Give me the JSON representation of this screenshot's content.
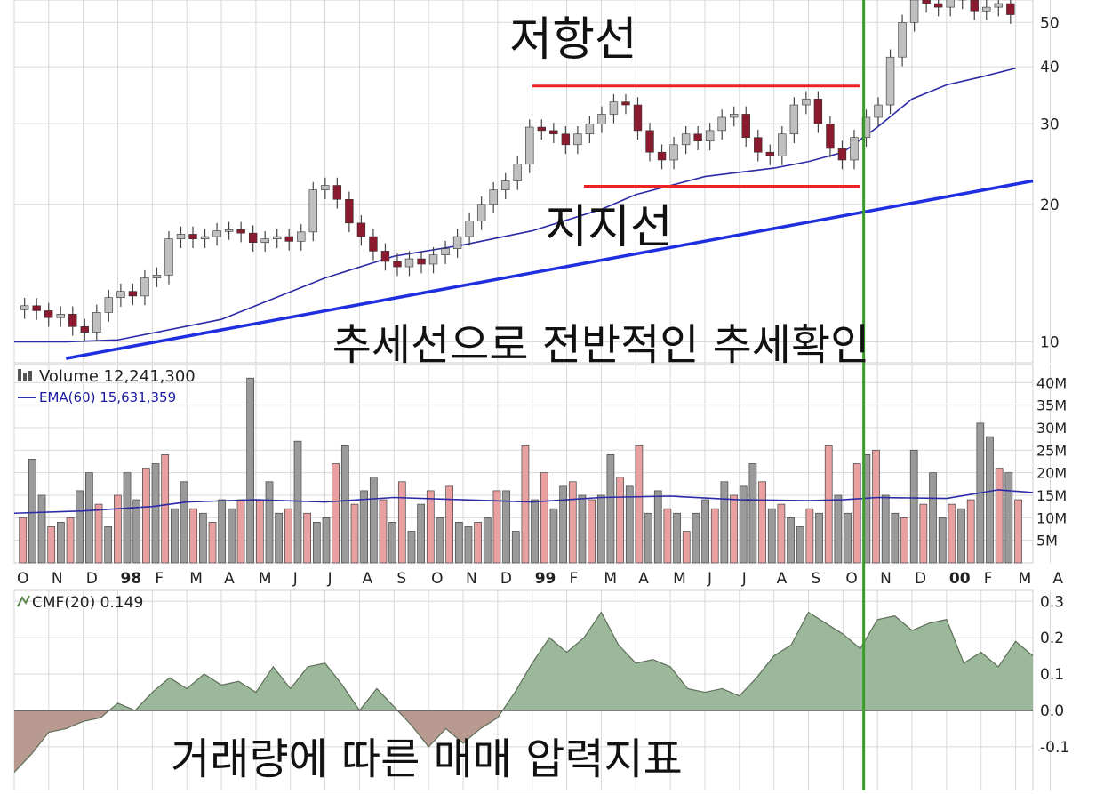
{
  "colors": {
    "up_candle": "#c0c0c0",
    "down_candle": "#8b1a2e",
    "wick": "#444444",
    "resistance_support": "#ee2222",
    "trendline": "#1f2fe0",
    "ema_line": "#2b2ba8",
    "volume_up": "#9a9a9a",
    "volume_down": "#e8a0a0",
    "cmf_positive": "#9cb89a",
    "cmf_negative": "#b99a90",
    "vertical_marker": "#3a9a2a",
    "grid": "#d8d8d8"
  },
  "annotations": {
    "resistance": "저항선",
    "support": "지지선",
    "trend": "추세선으로 전반적인 추세확인",
    "cmf_note": "거래량에 따른 매매 압력지표"
  },
  "chart_data": [
    {
      "type": "candlestick",
      "panel": "price",
      "scale": "log",
      "ylim": [
        9,
        56
      ],
      "y_ticks": [
        10,
        20,
        30,
        40,
        50
      ],
      "y_tick_labels": [
        "10",
        "20",
        "30",
        "40",
        "50"
      ],
      "x_range": [
        0,
        29.5
      ],
      "closes": [
        12.0,
        11.7,
        11.3,
        11.5,
        10.8,
        10.5,
        11.6,
        12.5,
        12.9,
        12.6,
        13.8,
        14.0,
        16.8,
        17.2,
        16.8,
        17.0,
        17.5,
        17.6,
        17.3,
        16.5,
        16.8,
        17.0,
        16.6,
        17.4,
        21.5,
        22.0,
        20.5,
        18.2,
        17.0,
        15.8,
        15.0,
        14.6,
        15.2,
        14.8,
        15.5,
        16.0,
        17.0,
        18.4,
        20.0,
        21.5,
        22.5,
        24.5,
        29.5,
        29.0,
        28.5,
        27.0,
        28.5,
        30.0,
        31.5,
        33.5,
        33.0,
        29.0,
        26.0,
        25.0,
        27.0,
        28.5,
        27.5,
        29.0,
        31.0,
        31.5,
        28.0,
        26.0,
        25.5,
        28.5,
        33.0,
        34.0,
        30.0,
        26.5,
        25.0,
        28.0,
        31.0,
        33.0,
        42.0,
        50.0,
        56.0,
        55.0,
        54.0,
        57.0,
        56.0,
        53.0,
        54.0,
        55.0,
        52.0
      ],
      "ema_line": [
        {
          "x": 0,
          "y": 10.0
        },
        {
          "x": 1.5,
          "y": 10.0
        },
        {
          "x": 3,
          "y": 10.1
        },
        {
          "x": 6,
          "y": 11.2
        },
        {
          "x": 9,
          "y": 13.8
        },
        {
          "x": 11,
          "y": 15.4
        },
        {
          "x": 13,
          "y": 16.3
        },
        {
          "x": 15,
          "y": 17.5
        },
        {
          "x": 17,
          "y": 19.5
        },
        {
          "x": 18,
          "y": 21.0
        },
        {
          "x": 20,
          "y": 23.0
        },
        {
          "x": 22,
          "y": 24.0
        },
        {
          "x": 23,
          "y": 24.8
        },
        {
          "x": 24,
          "y": 26.0
        },
        {
          "x": 25,
          "y": 29.5
        },
        {
          "x": 26,
          "y": 34.0
        },
        {
          "x": 27,
          "y": 36.5
        },
        {
          "x": 28,
          "y": 38.0
        },
        {
          "x": 29,
          "y": 39.7
        }
      ],
      "trendline": [
        {
          "x": 1.5,
          "y": 9.2
        },
        {
          "x": 29.5,
          "y": 22.5
        }
      ],
      "resistance_line": {
        "y": 36.3,
        "x_start": 15,
        "x_end": 24.5
      },
      "support_line": {
        "y": 21.9,
        "x_start": 16.5,
        "x_end": 24.5
      },
      "vertical_marker_x": 24.6
    },
    {
      "type": "bar",
      "panel": "volume",
      "legend": [
        "Volume 12,241,300",
        "EMA(60) 15,631,359"
      ],
      "ylim": [
        0,
        44
      ],
      "y_ticks": [
        5,
        10,
        15,
        20,
        25,
        30,
        35,
        40
      ],
      "y_tick_labels": [
        "5M",
        "10M",
        "15M",
        "20M",
        "25M",
        "30M",
        "35M",
        "40M"
      ],
      "values": [
        10,
        23,
        15,
        8,
        9,
        10,
        16,
        20,
        13,
        8,
        15,
        20,
        14,
        21,
        22,
        24,
        12,
        18,
        12,
        11,
        9,
        14,
        12,
        14,
        41,
        14,
        18,
        11,
        12,
        27,
        11,
        9,
        10,
        22,
        26,
        13,
        16,
        19,
        14,
        9,
        18,
        7,
        13,
        16,
        10,
        17,
        9,
        8,
        9,
        10,
        16,
        16,
        7,
        26,
        14,
        20,
        12,
        17,
        18,
        15,
        14,
        15,
        24,
        19,
        17,
        26,
        11,
        16,
        12,
        11,
        7,
        11,
        14,
        12,
        18,
        15,
        17,
        22,
        18,
        12,
        13,
        10,
        8,
        12,
        11,
        26,
        15,
        11,
        22,
        24,
        25,
        15,
        11,
        10,
        25,
        13,
        20,
        10,
        13,
        12,
        14,
        31,
        28,
        21,
        20,
        14
      ],
      "ema": [
        {
          "x": 0,
          "y": 11
        },
        {
          "x": 2,
          "y": 11.5
        },
        {
          "x": 4,
          "y": 12.5
        },
        {
          "x": 5,
          "y": 13.5
        },
        {
          "x": 7,
          "y": 14
        },
        {
          "x": 9,
          "y": 13.5
        },
        {
          "x": 11,
          "y": 14.5
        },
        {
          "x": 13,
          "y": 14.0
        },
        {
          "x": 15,
          "y": 13.5
        },
        {
          "x": 17,
          "y": 14.5
        },
        {
          "x": 19,
          "y": 14.8
        },
        {
          "x": 21,
          "y": 14
        },
        {
          "x": 23,
          "y": 13.8
        },
        {
          "x": 24,
          "y": 14.0
        },
        {
          "x": 25,
          "y": 14.5
        },
        {
          "x": 27,
          "y": 14.3
        },
        {
          "x": 28.5,
          "y": 16.2
        },
        {
          "x": 29.5,
          "y": 15.6
        }
      ],
      "x_labels": [
        "O",
        "N",
        "D",
        "98",
        "F",
        "M",
        "A",
        "M",
        "J",
        "J",
        "A",
        "S",
        "O",
        "N",
        "D",
        "99",
        "F",
        "M",
        "A",
        "M",
        "J",
        "J",
        "A",
        "S",
        "O",
        "N",
        "D",
        "00",
        "F",
        "M",
        "A"
      ],
      "x_label_positions": [
        0,
        1,
        2,
        3,
        4,
        5,
        6,
        7,
        8,
        9,
        10,
        11,
        12,
        13,
        14,
        15,
        16,
        17,
        18,
        19,
        20,
        21,
        22,
        23,
        24,
        25,
        26,
        27,
        28,
        29,
        30
      ],
      "bold_labels": [
        "98",
        "99",
        "00"
      ]
    },
    {
      "type": "area",
      "panel": "cmf",
      "legend": "CMF(20) 0.149",
      "ylim": [
        -0.22,
        0.33
      ],
      "y_ticks": [
        -0.1,
        0.0,
        0.1,
        0.2,
        0.3
      ],
      "y_tick_labels": [
        "-0.1",
        "0.0",
        "0.1",
        "0.2",
        "0.3"
      ],
      "points": [
        {
          "x": 0,
          "y": -0.17
        },
        {
          "x": 0.5,
          "y": -0.12
        },
        {
          "x": 1,
          "y": -0.06
        },
        {
          "x": 1.5,
          "y": -0.05
        },
        {
          "x": 2,
          "y": -0.03
        },
        {
          "x": 2.5,
          "y": -0.02
        },
        {
          "x": 3,
          "y": 0.02
        },
        {
          "x": 3.5,
          "y": 0.0
        },
        {
          "x": 4,
          "y": 0.05
        },
        {
          "x": 4.5,
          "y": 0.09
        },
        {
          "x": 5,
          "y": 0.06
        },
        {
          "x": 5.5,
          "y": 0.1
        },
        {
          "x": 6,
          "y": 0.07
        },
        {
          "x": 6.5,
          "y": 0.08
        },
        {
          "x": 7,
          "y": 0.05
        },
        {
          "x": 7.5,
          "y": 0.12
        },
        {
          "x": 8,
          "y": 0.06
        },
        {
          "x": 8.5,
          "y": 0.12
        },
        {
          "x": 9,
          "y": 0.13
        },
        {
          "x": 9.5,
          "y": 0.07
        },
        {
          "x": 10,
          "y": 0.0
        },
        {
          "x": 10.5,
          "y": 0.06
        },
        {
          "x": 11,
          "y": 0.01
        },
        {
          "x": 11.5,
          "y": -0.04
        },
        {
          "x": 12,
          "y": -0.1
        },
        {
          "x": 12.5,
          "y": -0.05
        },
        {
          "x": 13,
          "y": -0.09
        },
        {
          "x": 13.5,
          "y": -0.05
        },
        {
          "x": 14,
          "y": -0.02
        },
        {
          "x": 14.5,
          "y": 0.05
        },
        {
          "x": 15,
          "y": 0.13
        },
        {
          "x": 15.5,
          "y": 0.2
        },
        {
          "x": 16,
          "y": 0.16
        },
        {
          "x": 16.5,
          "y": 0.2
        },
        {
          "x": 17,
          "y": 0.27
        },
        {
          "x": 17.5,
          "y": 0.18
        },
        {
          "x": 18,
          "y": 0.13
        },
        {
          "x": 18.5,
          "y": 0.14
        },
        {
          "x": 19,
          "y": 0.12
        },
        {
          "x": 19.5,
          "y": 0.06
        },
        {
          "x": 20,
          "y": 0.05
        },
        {
          "x": 20.5,
          "y": 0.06
        },
        {
          "x": 21,
          "y": 0.04
        },
        {
          "x": 21.5,
          "y": 0.09
        },
        {
          "x": 22,
          "y": 0.15
        },
        {
          "x": 22.5,
          "y": 0.18
        },
        {
          "x": 23,
          "y": 0.27
        },
        {
          "x": 23.5,
          "y": 0.24
        },
        {
          "x": 24,
          "y": 0.21
        },
        {
          "x": 24.5,
          "y": 0.17
        },
        {
          "x": 25,
          "y": 0.25
        },
        {
          "x": 25.5,
          "y": 0.26
        },
        {
          "x": 26,
          "y": 0.22
        },
        {
          "x": 26.5,
          "y": 0.24
        },
        {
          "x": 27,
          "y": 0.25
        },
        {
          "x": 27.5,
          "y": 0.13
        },
        {
          "x": 28,
          "y": 0.16
        },
        {
          "x": 28.5,
          "y": 0.12
        },
        {
          "x": 29,
          "y": 0.19
        },
        {
          "x": 29.5,
          "y": 0.15
        }
      ]
    }
  ]
}
